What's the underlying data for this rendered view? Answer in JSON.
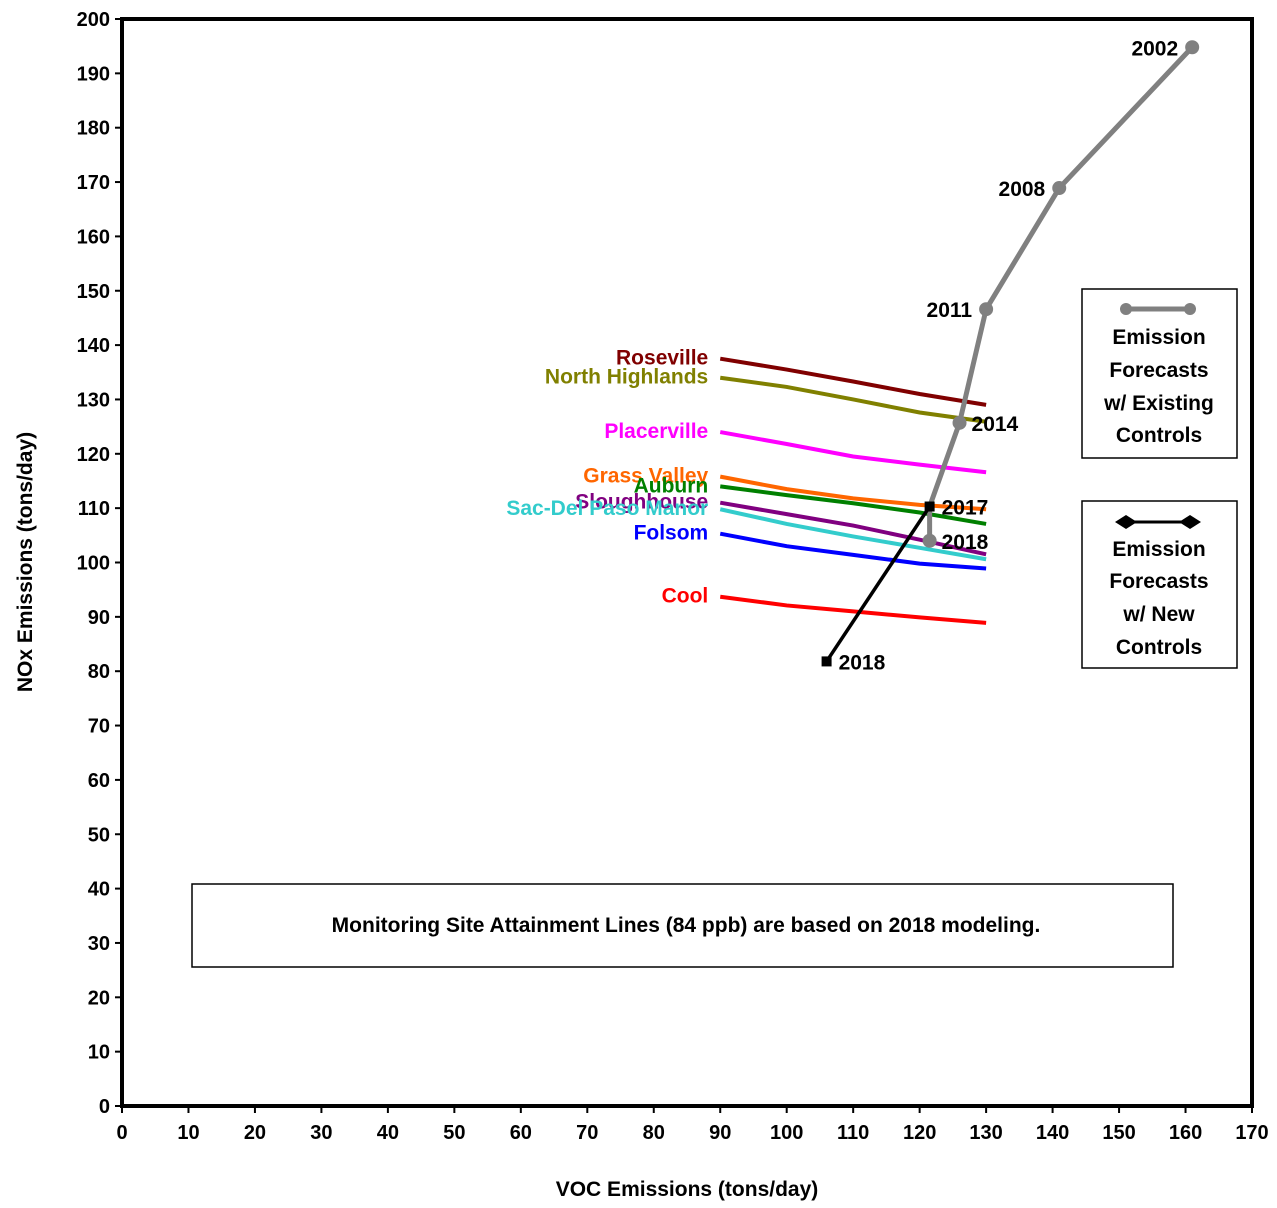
{
  "chart_data": {
    "type": "line",
    "xlabel": "VOC Emissions (tons/day)",
    "ylabel": "NOx Emissions (tons/day)",
    "xlim": [
      0,
      170
    ],
    "ylim": [
      0,
      200
    ],
    "xticks": [
      0,
      10,
      20,
      30,
      40,
      50,
      60,
      70,
      80,
      90,
      100,
      110,
      120,
      130,
      140,
      150,
      160,
      170
    ],
    "yticks": [
      0,
      10,
      20,
      30,
      40,
      50,
      60,
      70,
      80,
      90,
      100,
      110,
      120,
      130,
      140,
      150,
      160,
      170,
      180,
      190,
      200
    ],
    "grid": false,
    "attainment_lines": [
      {
        "name": "Roseville",
        "color": "#800000",
        "points": [
          [
            90,
            137.5
          ],
          [
            100,
            135.5
          ],
          [
            110,
            133.3
          ],
          [
            120,
            131.0
          ],
          [
            130,
            129.0
          ]
        ]
      },
      {
        "name": "North Highlands",
        "color": "#808000",
        "points": [
          [
            90,
            134.0
          ],
          [
            100,
            132.3
          ],
          [
            110,
            130.0
          ],
          [
            120,
            127.6
          ],
          [
            130,
            125.9
          ]
        ]
      },
      {
        "name": "Placerville",
        "color": "#ff00ff",
        "points": [
          [
            90,
            124.0
          ],
          [
            100,
            121.8
          ],
          [
            110,
            119.5
          ],
          [
            120,
            118.0
          ],
          [
            130,
            116.6
          ]
        ]
      },
      {
        "name": "Grass Valley",
        "color": "#ff6600",
        "points": [
          [
            90,
            115.8
          ],
          [
            100,
            113.5
          ],
          [
            110,
            111.8
          ],
          [
            120,
            110.6
          ],
          [
            130,
            109.8
          ]
        ]
      },
      {
        "name": "Auburn",
        "color": "#008000",
        "points": [
          [
            90,
            114.0
          ],
          [
            100,
            112.4
          ],
          [
            110,
            110.9
          ],
          [
            120,
            109.2
          ],
          [
            130,
            107.1
          ]
        ]
      },
      {
        "name": "Sloughhouse",
        "color": "#800080",
        "points": [
          [
            90,
            111.0
          ],
          [
            100,
            108.9
          ],
          [
            110,
            106.8
          ],
          [
            120,
            104.2
          ],
          [
            130,
            101.5
          ]
        ]
      },
      {
        "name": "Sac-Del Paso Manor",
        "color": "#33cccc",
        "points": [
          [
            90,
            109.8
          ],
          [
            100,
            107.1
          ],
          [
            110,
            104.8
          ],
          [
            120,
            102.7
          ],
          [
            130,
            100.6
          ]
        ]
      },
      {
        "name": "Folsom",
        "color": "#0000ff",
        "points": [
          [
            90,
            105.3
          ],
          [
            100,
            103.0
          ],
          [
            110,
            101.4
          ],
          [
            120,
            99.8
          ],
          [
            130,
            98.9
          ]
        ]
      },
      {
        "name": "Cool",
        "color": "#ff0000",
        "points": [
          [
            90,
            93.7
          ],
          [
            100,
            92.1
          ],
          [
            110,
            91.0
          ],
          [
            120,
            89.9
          ],
          [
            130,
            88.9
          ]
        ]
      }
    ],
    "existing_controls": {
      "color": "#808080",
      "points": [
        {
          "year": "2002",
          "x": 161,
          "y": 194.8
        },
        {
          "year": "2008",
          "x": 141,
          "y": 168.9
        },
        {
          "year": "2011",
          "x": 130,
          "y": 146.6
        },
        {
          "year": "2014",
          "x": 126,
          "y": 125.7
        },
        {
          "year": "2017",
          "x": 121.5,
          "y": 110.3
        },
        {
          "year": "2018",
          "x": 121.5,
          "y": 104.0
        }
      ]
    },
    "new_controls": {
      "color": "#000000",
      "points": [
        {
          "year": "2017",
          "x": 121.5,
          "y": 110.3
        },
        {
          "year": "2018",
          "x": 106,
          "y": 81.8
        }
      ]
    },
    "year_labels": [
      {
        "text": "2002",
        "x": 161,
        "y": 194.8,
        "pos": "left"
      },
      {
        "text": "2008",
        "x": 141,
        "y": 168.9,
        "pos": "left"
      },
      {
        "text": "2011",
        "x": 130,
        "y": 146.6,
        "pos": "left"
      },
      {
        "text": "2014",
        "x": 126,
        "y": 125.7,
        "pos": "right"
      },
      {
        "text": "2017",
        "x": 121.5,
        "y": 110.3,
        "pos": "right"
      },
      {
        "text": "2018",
        "x": 121.5,
        "y": 104.0,
        "pos": "right"
      },
      {
        "text": "2018",
        "x": 106,
        "y": 81.8,
        "pos": "right"
      }
    ],
    "legend": [
      {
        "lines": [
          "Emission",
          "Forecasts",
          "w/ Existing",
          "Controls"
        ],
        "marker": "circle",
        "color": "#808080"
      },
      {
        "lines": [
          "Emission",
          "Forecasts",
          "w/ New",
          "Controls"
        ],
        "marker": "diamond",
        "color": "#000000"
      }
    ],
    "note": "Monitoring Site Attainment Lines (84 ppb) are based on 2018 modeling."
  }
}
